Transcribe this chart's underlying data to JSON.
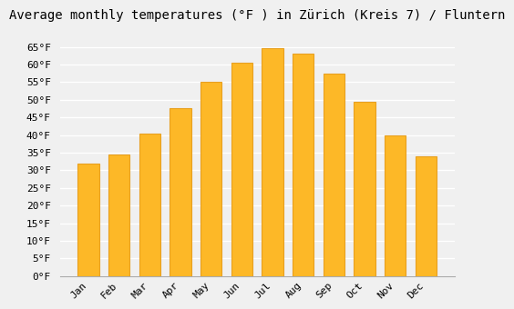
{
  "title": "Average monthly temperatures (°F ) in Zürich (Kreis 7) / Fluntern",
  "months": [
    "Jan",
    "Feb",
    "Mar",
    "Apr",
    "May",
    "Jun",
    "Jul",
    "Aug",
    "Sep",
    "Oct",
    "Nov",
    "Dec"
  ],
  "values": [
    32,
    34.5,
    40.5,
    47.5,
    55,
    60.5,
    64.5,
    63,
    57.5,
    49.5,
    40,
    34
  ],
  "bar_color": "#FDB827",
  "bar_edge_color": "#E8A020",
  "background_color": "#F0F0F0",
  "grid_color": "#FFFFFF",
  "ylim": [
    0,
    70
  ],
  "yticks": [
    0,
    5,
    10,
    15,
    20,
    25,
    30,
    35,
    40,
    45,
    50,
    55,
    60,
    65
  ],
  "ylabel_suffix": "°F",
  "title_fontsize": 10,
  "tick_fontsize": 8,
  "font_family": "monospace"
}
